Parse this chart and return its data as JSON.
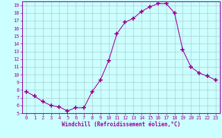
{
  "x": [
    0,
    1,
    2,
    3,
    4,
    5,
    6,
    7,
    8,
    9,
    10,
    11,
    12,
    13,
    14,
    15,
    16,
    17,
    18,
    19,
    20,
    21,
    22,
    23
  ],
  "y": [
    7.8,
    7.2,
    6.5,
    6.0,
    5.8,
    5.3,
    5.7,
    5.7,
    7.8,
    9.3,
    11.8,
    15.3,
    16.8,
    17.3,
    18.2,
    18.8,
    19.2,
    19.2,
    18.0,
    13.2,
    11.0,
    10.2,
    9.8,
    9.3
  ],
  "line_color": "#990099",
  "marker": "+",
  "marker_size": 4,
  "xlabel": "Windchill (Refroidissement éolien,°C)",
  "xlabel_color": "#990099",
  "bg_color": "#ccffff",
  "grid_color": "#aacccc",
  "tick_color": "#990099",
  "ylim": [
    5,
    19.5
  ],
  "xlim": [
    -0.5,
    23.5
  ],
  "yticks": [
    5,
    6,
    7,
    8,
    9,
    10,
    11,
    12,
    13,
    14,
    15,
    16,
    17,
    18,
    19
  ],
  "xticks": [
    0,
    1,
    2,
    3,
    4,
    5,
    6,
    7,
    8,
    9,
    10,
    11,
    12,
    13,
    14,
    15,
    16,
    17,
    18,
    19,
    20,
    21,
    22,
    23
  ]
}
